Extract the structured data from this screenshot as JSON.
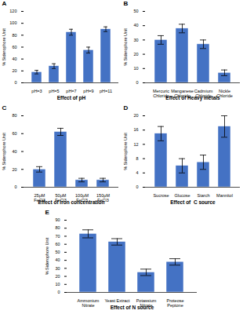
{
  "chart_data": [
    {
      "type": "bar",
      "xlabel": "Effect of pH",
      "ylabel": "% Siderophore Unit",
      "annotations": [
        "A"
      ],
      "categories": [
        "pH=3",
        "pH=5",
        "pH=7",
        "pH=9",
        "pH=11"
      ],
      "values": [
        18,
        28,
        85,
        55,
        90
      ],
      "errors": [
        3,
        4,
        5,
        5,
        4
      ],
      "color": "#4472C4",
      "ylim": [
        0,
        120
      ],
      "yticks": [
        0,
        20,
        40,
        60,
        80,
        100,
        120
      ],
      "grid": false
    },
    {
      "type": "bar",
      "xlabel": "Effect of Heavy metals",
      "ylabel": "% Siderophore Unit",
      "annotations": [
        "B"
      ],
      "categories": [
        "Mercuric\nChloride",
        "Manganese\nChloride",
        "Cadmium\nChloride",
        "Nickle\nChloride"
      ],
      "values": [
        30,
        38,
        27,
        7
      ],
      "errors": [
        3,
        3,
        3,
        2
      ],
      "color": "#4472C4",
      "ylim": [
        0,
        50
      ],
      "yticks": [
        0,
        10,
        20,
        30,
        40,
        50
      ],
      "grid": false
    },
    {
      "type": "bar",
      "xlabel": "Effect of iron concentration",
      "ylabel": "% Siderophore Unit",
      "annotations": [
        "C"
      ],
      "categories": [
        "25μM\nFeCl3",
        "50μM\nFeCl3",
        "100μM\nFeCl3",
        "150μM\nFeCl3"
      ],
      "values": [
        20,
        62,
        8,
        8
      ],
      "errors": [
        3,
        4,
        2,
        2
      ],
      "color": "#4472C4",
      "ylim": [
        0,
        80
      ],
      "yticks": [
        0,
        20,
        40,
        60,
        80
      ],
      "grid": false
    },
    {
      "type": "bar",
      "xlabel": "Effect of  C source",
      "ylabel": "% Siderophore Unit",
      "annotations": [
        "D"
      ],
      "categories": [
        "Sucrose",
        "Glucose",
        "Starch",
        "Mannitol"
      ],
      "values": [
        15,
        6,
        7,
        17
      ],
      "errors": [
        2,
        2,
        2,
        3
      ],
      "color": "#4472C4",
      "ylim": [
        0,
        20
      ],
      "yticks": [
        0,
        4,
        8,
        12,
        16,
        20
      ],
      "grid": false
    },
    {
      "type": "bar",
      "xlabel": "Effect of N source",
      "ylabel": "% Siderophore Unit",
      "annotations": [
        "E"
      ],
      "categories": [
        "Ammonium\nNitrate",
        "Yeast Extract",
        "Potassium\nNitrate",
        "Proteose\nPeptone"
      ],
      "values": [
        73,
        63,
        25,
        38
      ],
      "errors": [
        5,
        4,
        4,
        4
      ],
      "color": "#4472C4",
      "ylim": [
        0,
        90
      ],
      "yticks": [
        0,
        10,
        20,
        30,
        40,
        50,
        60,
        70,
        80,
        90
      ],
      "grid": false
    }
  ]
}
